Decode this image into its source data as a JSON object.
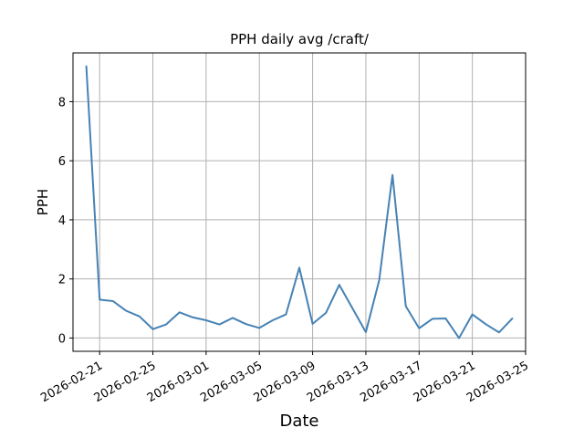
{
  "chart_data": {
    "type": "line",
    "title": "PPH daily avg /craft/",
    "xlabel": "Date",
    "ylabel": "PPH",
    "grid": true,
    "line_color": "#4682b4",
    "xlim": [
      "2026-02-19",
      "2026-03-25"
    ],
    "ylim": [
      -0.45,
      9.65
    ],
    "x_ticks": [
      "2026-02-21",
      "2026-02-25",
      "2026-03-01",
      "2026-03-05",
      "2026-03-09",
      "2026-03-13",
      "2026-03-17",
      "2026-03-21",
      "2026-03-25"
    ],
    "y_ticks": [
      "0",
      "2",
      "4",
      "6",
      "8"
    ],
    "series": [
      {
        "x": [
          "2026-02-20",
          "2026-02-21",
          "2026-02-22",
          "2026-02-23",
          "2026-02-24",
          "2026-02-25",
          "2026-02-26",
          "2026-02-27",
          "2026-02-28",
          "2026-03-01",
          "2026-03-02",
          "2026-03-03",
          "2026-03-04",
          "2026-03-05",
          "2026-03-06",
          "2026-03-07",
          "2026-03-08",
          "2026-03-09",
          "2026-03-10",
          "2026-03-11",
          "2026-03-12",
          "2026-03-13",
          "2026-03-14",
          "2026-03-15",
          "2026-03-16",
          "2026-03-17",
          "2026-03-18",
          "2026-03-19",
          "2026-03-20",
          "2026-03-21",
          "2026-03-22",
          "2026-03-23",
          "2026-03-24"
        ],
        "values": [
          9.2,
          1.3,
          1.25,
          0.92,
          0.73,
          0.3,
          0.46,
          0.87,
          0.7,
          0.6,
          0.46,
          0.68,
          0.47,
          0.34,
          0.6,
          0.8,
          2.38,
          0.48,
          0.85,
          1.8,
          1.0,
          0.2,
          1.95,
          5.52,
          1.08,
          0.33,
          0.65,
          0.66,
          0.0,
          0.8,
          0.47,
          0.19,
          0.66
        ]
      }
    ]
  }
}
